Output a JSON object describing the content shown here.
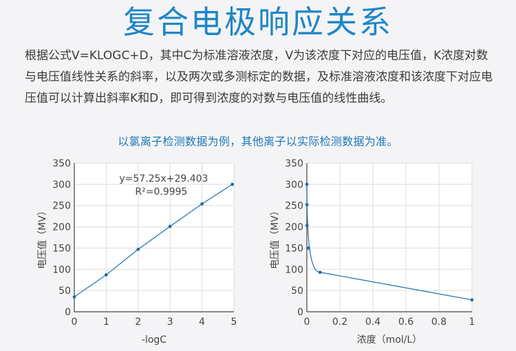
{
  "title": "复合电极响应关系",
  "paragraph": "根据公式V=KLOGC+D，其中C为标准溶液浓度，V为该浓度下对应的电压值，K浓度对数与电压值线性关系的斜率，以及两次或多测标定的数据，及标准溶液浓度和该浓度下对应电压值可以计算出斜率K和D，即可得到浓度的对数与电压值的线性曲线。",
  "note": "以氯离子检测数据为例，其他离子以实际检测数据为准。",
  "colors": {
    "title": "#1d86c8",
    "series": "#1f6fa6",
    "note": "#1d78b8"
  },
  "chart_data": [
    {
      "type": "line",
      "xlabel": "-logC",
      "ylabel": "电压值（MV）",
      "xlim": [
        0,
        5
      ],
      "ylim": [
        0,
        350
      ],
      "xticks": [
        0,
        1,
        2,
        3,
        4,
        5
      ],
      "yticks": [
        0,
        50,
        100,
        150,
        200,
        250,
        300,
        350
      ],
      "grid": true,
      "series": [
        {
          "x": [
            0,
            1,
            2,
            3,
            4,
            4.95
          ],
          "y": [
            35,
            87,
            147,
            201,
            254,
            300
          ]
        }
      ],
      "annotations": [
        "y=57.25x+29.403",
        "R²=0.9995"
      ]
    },
    {
      "type": "line",
      "xlabel": "浓度（mol/L）",
      "ylabel": "电压值（MV）",
      "xlim": [
        0,
        1
      ],
      "ylim": [
        0,
        350
      ],
      "xticks": [
        0,
        0.2,
        0.4,
        0.6,
        0.8,
        1
      ],
      "yticks": [
        0,
        50,
        100,
        150,
        200,
        250,
        300,
        350
      ],
      "grid": true,
      "series": [
        {
          "x": [
            1e-05,
            0.0001,
            0.001,
            0.01,
            0.08,
            1.0
          ],
          "y": [
            300,
            252,
            203,
            150,
            93,
            28
          ]
        }
      ]
    }
  ]
}
